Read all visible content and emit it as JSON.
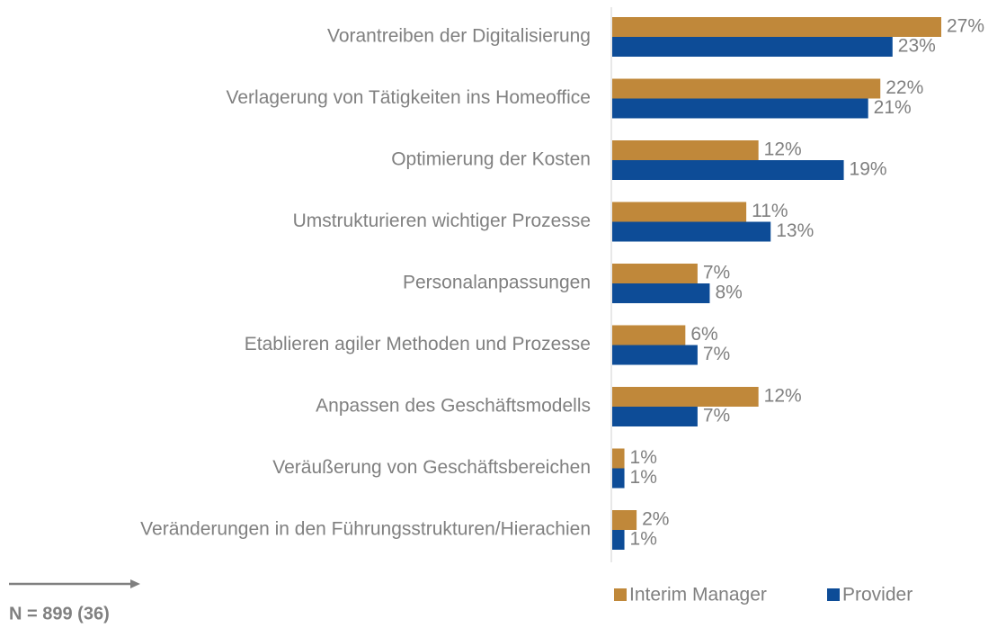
{
  "chart_data": {
    "type": "hbar",
    "categories": [
      "Vorantreiben der Digitalisierung",
      "Verlagerung von Tätigkeiten ins Homeoffice",
      "Optimierung der Kosten",
      "Umstrukturieren wichtiger Prozesse",
      "Personalanpassungen",
      "Etablieren agiler Methoden und Prozesse",
      "Anpassen des Geschäftsmodells",
      "Veräußerung von Geschäftsbereichen",
      "Veränderungen in den Führungsstrukturen/Hierachien"
    ],
    "series": [
      {
        "name": "Interim Manager",
        "color": "#c0883a",
        "values": [
          27,
          22,
          12,
          11,
          7,
          6,
          12,
          1,
          2
        ],
        "value_labels": [
          "27%",
          "22%",
          "12%",
          "11%",
          "7%",
          "6%",
          "12%",
          "1%",
          "2%"
        ]
      },
      {
        "name": "Provider",
        "color": "#0d4c97",
        "values": [
          23,
          21,
          19,
          13,
          8,
          7,
          7,
          1,
          1
        ],
        "value_labels": [
          "23%",
          "21%",
          "19%",
          "13%",
          "8%",
          "7%",
          "7%",
          "1%",
          "1%"
        ]
      }
    ],
    "annotation": "N = 899 (36)",
    "legend": "bottom"
  }
}
